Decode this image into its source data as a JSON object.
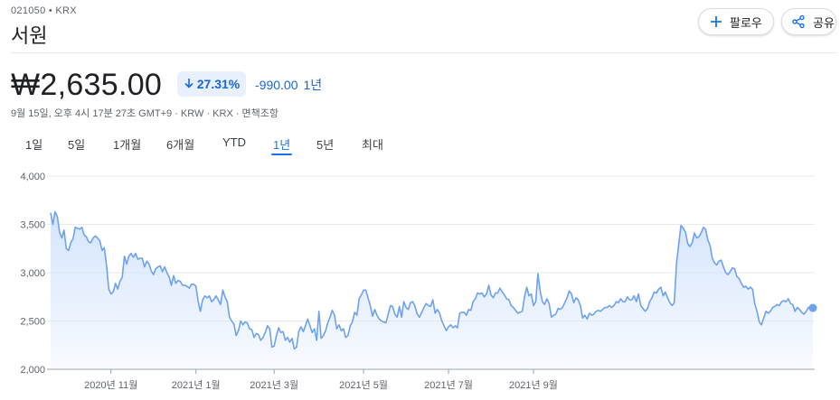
{
  "header": {
    "ticker": "021050 • KRX",
    "name": "서원",
    "follow_label": "팔로우",
    "share_label": "공유"
  },
  "quote": {
    "price": "₩2,635.00",
    "percent_change": "27.31%",
    "abs_change": "-990.00",
    "period": "1년",
    "meta": "9월 15일, 오후 4시 17분 27초 GMT+9 · KRW · KRX · 면책조항"
  },
  "tabs": [
    {
      "label": "1일",
      "active": false
    },
    {
      "label": "5일",
      "active": false
    },
    {
      "label": "1개월",
      "active": false
    },
    {
      "label": "6개월",
      "active": false
    },
    {
      "label": "YTD",
      "active": false
    },
    {
      "label": "1년",
      "active": true
    },
    {
      "label": "5년",
      "active": false
    },
    {
      "label": "최대",
      "active": false
    }
  ],
  "colors": {
    "accent": "#1a73e8",
    "line": "#6ea2ef",
    "fill_top": "#d2e3fc",
    "negative": "#1967d2"
  },
  "chart_data": {
    "type": "area",
    "ylim": [
      2000,
      4000
    ],
    "yticks": [
      "4,000",
      "3,500",
      "3,000",
      "2,500",
      "2,000"
    ],
    "yticks_values": [
      4000,
      3500,
      3000,
      2500,
      2000
    ],
    "xticks": [
      {
        "label": "2020년 11월",
        "index": 27
      },
      {
        "label": "2021년 1월",
        "index": 65
      },
      {
        "label": "2021년 3월",
        "index": 100
      },
      {
        "label": "2021년 5월",
        "index": 140
      },
      {
        "label": "2021년 7월",
        "index": 178
      },
      {
        "label": "2021년 9월",
        "index": 216
      }
    ],
    "values": [
      3620,
      3500,
      3630,
      3580,
      3420,
      3360,
      3440,
      3250,
      3230,
      3310,
      3350,
      3470,
      3460,
      3450,
      3470,
      3390,
      3370,
      3320,
      3310,
      3360,
      3380,
      3360,
      3330,
      3230,
      3260,
      3080,
      2830,
      2780,
      2800,
      2890,
      2830,
      2910,
      2950,
      3170,
      3090,
      3170,
      3200,
      3160,
      3200,
      3140,
      3150,
      3150,
      3060,
      3120,
      3090,
      3020,
      2980,
      3040,
      3060,
      3070,
      3010,
      3060,
      3000,
      2960,
      2870,
      2970,
      2890,
      2920,
      2910,
      2870,
      2870,
      2860,
      2840,
      2880,
      2880,
      2860,
      2700,
      2600,
      2720,
      2760,
      2740,
      2760,
      2700,
      2720,
      2760,
      2720,
      2670,
      2820,
      2750,
      2700,
      2540,
      2500,
      2470,
      2350,
      2400,
      2500,
      2460,
      2490,
      2480,
      2420,
      2410,
      2330,
      2370,
      2360,
      2300,
      2330,
      2380,
      2450,
      2420,
      2230,
      2240,
      2350,
      2430,
      2380,
      2390,
      2300,
      2330,
      2280,
      2320,
      2210,
      2230,
      2390,
      2440,
      2390,
      2450,
      2520,
      2450,
      2380,
      2420,
      2300,
      2600,
      2320,
      2350,
      2400,
      2480,
      2540,
      2610,
      2560,
      2420,
      2460,
      2400,
      2420,
      2330,
      2350,
      2450,
      2490,
      2590,
      2560,
      2730,
      2770,
      2820,
      2820,
      2740,
      2660,
      2550,
      2620,
      2560,
      2520,
      2500,
      2490,
      2480,
      2570,
      2660,
      2650,
      2570,
      2540,
      2650,
      2540,
      2700,
      2640,
      2620,
      2690,
      2700,
      2650,
      2570,
      2540,
      2590,
      2640,
      2680,
      2660,
      2650,
      2720,
      2580,
      2620,
      2580,
      2500,
      2450,
      2400,
      2440,
      2460,
      2430,
      2450,
      2430,
      2580,
      2590,
      2590,
      2560,
      2620,
      2610,
      2700,
      2730,
      2790,
      2780,
      2790,
      2750,
      2780,
      2870,
      2770,
      2740,
      2790,
      2790,
      2840,
      2800,
      2770,
      2730,
      2720,
      2660,
      2640,
      2610,
      2580,
      2590,
      2600,
      2750,
      2850,
      2760,
      2780,
      2660,
      2700,
      2990,
      2810,
      2700,
      2670,
      2730,
      2680,
      2540,
      2560,
      2570,
      2630,
      2620,
      2640,
      2690,
      2740,
      2810,
      2780,
      2690,
      2740,
      2720,
      2660,
      2530,
      2560,
      2520,
      2580,
      2560,
      2570,
      2600,
      2610,
      2600,
      2620,
      2640,
      2640,
      2660,
      2640,
      2660,
      2700,
      2690,
      2730,
      2700,
      2700,
      2750,
      2720,
      2720,
      2760,
      2700,
      2780,
      2660,
      2630,
      2600,
      2630,
      2700,
      2740,
      2800,
      2790,
      2830,
      2850,
      2760,
      2800,
      2740,
      2690,
      2660,
      2690,
      3100,
      3300,
      3490,
      3460,
      3420,
      3300,
      3270,
      3310,
      3410,
      3360,
      3370,
      3410,
      3470,
      3450,
      3340,
      3280,
      3150,
      3100,
      3080,
      3120,
      3130,
      3060,
      3000,
      2980,
      3010,
      3050,
      3040,
      2960,
      2940,
      2890,
      2850,
      2860,
      2830,
      2850,
      2830,
      2680,
      2600,
      2490,
      2460,
      2530,
      2600,
      2580,
      2600,
      2640,
      2650,
      2670,
      2660,
      2700,
      2710,
      2700,
      2730,
      2680,
      2670,
      2600,
      2640,
      2620,
      2590,
      2570,
      2600,
      2640,
      2620,
      2635
    ]
  }
}
